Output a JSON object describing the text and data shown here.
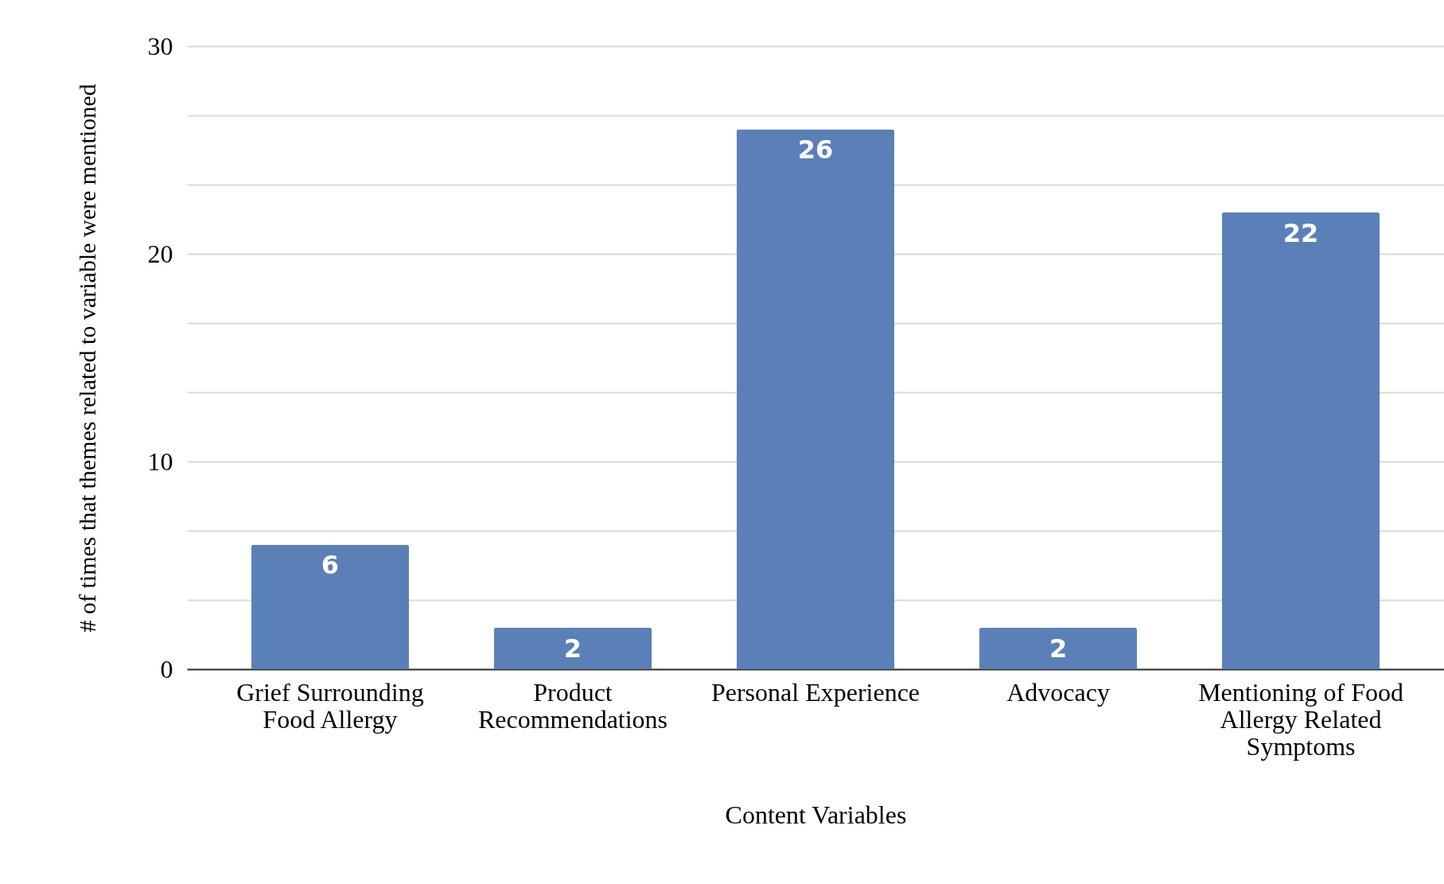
{
  "chart_data": {
    "type": "bar",
    "xlabel": "Content Variables",
    "ylabel": "# of times that themes related to variable were mentioned",
    "categories": [
      "Grief Surrounding Food Allergy",
      "Product Recommendations",
      "Personal Experience",
      "Advocacy",
      "Mentioning of Food Allergy Related Symptoms"
    ],
    "values": [
      6,
      2,
      26,
      2,
      22
    ],
    "color": "#5b80b8",
    "ylim": [
      0,
      30
    ],
    "yticks": [
      0,
      {
        "value": 3.333,
        "label": null
      },
      {
        "value": 6.667,
        "label": null
      },
      10,
      {
        "value": 13.333,
        "label": null
      },
      {
        "value": 16.667,
        "label": null
      },
      20,
      {
        "value": 23.333,
        "label": null
      },
      {
        "value": 26.667,
        "label": null
      },
      30
    ],
    "grid": "y",
    "data_labels": true
  }
}
